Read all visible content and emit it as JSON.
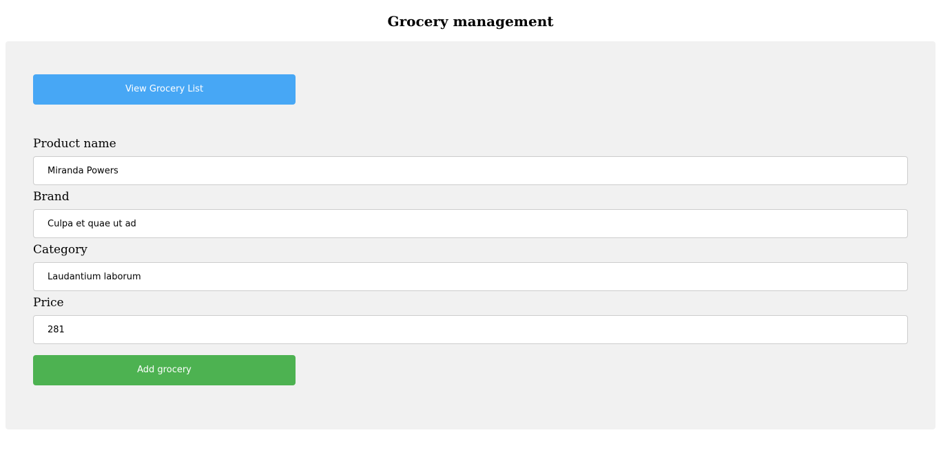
{
  "page": {
    "title": "Grocery management"
  },
  "colors": {
    "panel_background": "#f1f1f1",
    "view_button": "#47a7f5",
    "add_button": "#4db251",
    "input_border": "#cccccc"
  },
  "actions": {
    "view_list_label": "View Grocery List",
    "add_label": "Add grocery"
  },
  "form": {
    "product_name": {
      "label": "Product name",
      "value": "Miranda Powers"
    },
    "brand": {
      "label": "Brand",
      "value": "Culpa et quae ut ad"
    },
    "category": {
      "label": "Category",
      "value": "Laudantium laborum"
    },
    "price": {
      "label": "Price",
      "value": "281"
    }
  }
}
